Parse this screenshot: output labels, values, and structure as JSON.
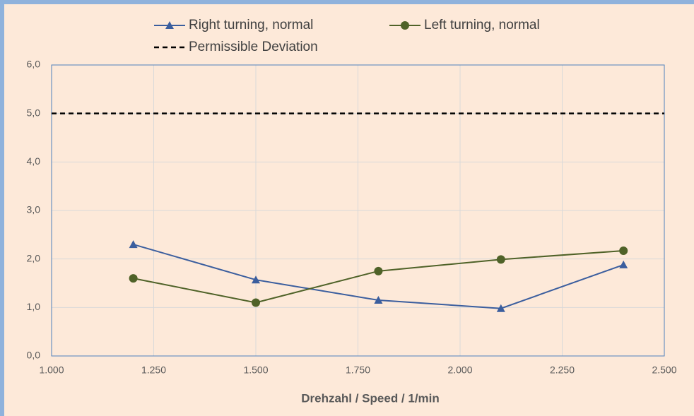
{
  "chart_data": {
    "type": "line",
    "x_label": "Drehzahl / Speed / 1/min",
    "xlim": [
      1000,
      2500
    ],
    "xticks": [
      {
        "value": 1000,
        "label": "1.000"
      },
      {
        "value": 1250,
        "label": "1.250"
      },
      {
        "value": 1500,
        "label": "1.500"
      },
      {
        "value": 1750,
        "label": "1.750"
      },
      {
        "value": 2000,
        "label": "2.000"
      },
      {
        "value": 2250,
        "label": "2.250"
      },
      {
        "value": 2500,
        "label": "2.500"
      }
    ],
    "ylim": [
      0,
      6
    ],
    "yticks": [
      {
        "value": 0,
        "label": "0,0"
      },
      {
        "value": 1,
        "label": "1,0"
      },
      {
        "value": 2,
        "label": "2,0"
      },
      {
        "value": 3,
        "label": "3,0"
      },
      {
        "value": 4,
        "label": "4,0"
      },
      {
        "value": 5,
        "label": "5,0"
      },
      {
        "value": 6,
        "label": "6,0"
      }
    ],
    "grid": true,
    "legend": "top",
    "series": [
      {
        "name": "Right turning, normal",
        "color": "#3b5e9e",
        "marker": "triangle",
        "dash": "solid",
        "x": [
          1200,
          1500,
          1800,
          2100,
          2400
        ],
        "values": [
          2.3,
          1.57,
          1.15,
          0.98,
          1.88
        ]
      },
      {
        "name": "Left turning, normal",
        "color": "#4f6228",
        "marker": "circle",
        "dash": "solid",
        "x": [
          1200,
          1500,
          1800,
          2100,
          2400
        ],
        "values": [
          1.6,
          1.1,
          1.75,
          1.99,
          2.17
        ]
      },
      {
        "name": "Permissible Deviation",
        "color": "#000000",
        "marker": "none",
        "dash": "dashed",
        "x": [
          1000,
          2500
        ],
        "values": [
          5,
          5
        ]
      }
    ]
  }
}
